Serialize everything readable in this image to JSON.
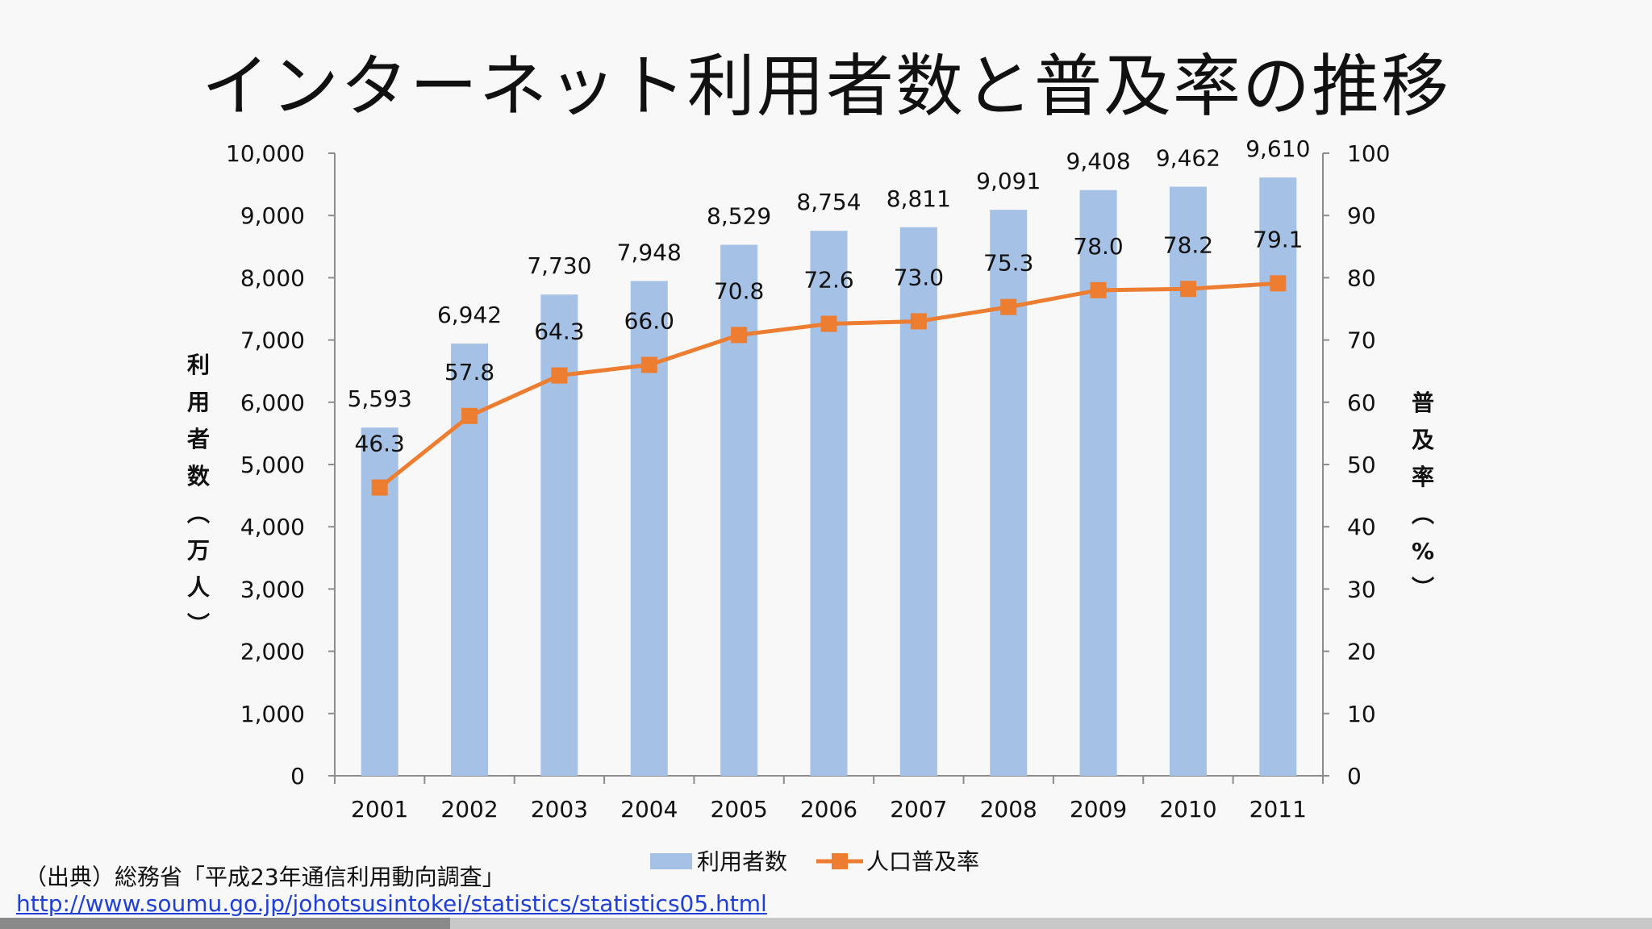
{
  "slide": {
    "title": "インターネット利用者数と普及率の推移",
    "source_text": "（出典）総務省「平成23年通信利用動向調査」",
    "source_link": "http://www.soumu.go.jp/johotsusintokei/statistics/statistics05.html"
  },
  "chart_data": {
    "type": "bar",
    "categories": [
      "2001",
      "2002",
      "2003",
      "2004",
      "2005",
      "2006",
      "2007",
      "2008",
      "2009",
      "2010",
      "2011"
    ],
    "series": [
      {
        "name": "利用者数",
        "type": "bar",
        "axis": "left",
        "color": "#a5c1e6",
        "values": [
          5593,
          6942,
          7730,
          7948,
          8529,
          8754,
          8811,
          9091,
          9408,
          9462,
          9610
        ],
        "labels": [
          "5,593",
          "6,942",
          "7,730",
          "7,948",
          "8,529",
          "8,754",
          "8,811",
          "9,091",
          "9,408",
          "9,462",
          "9,610"
        ]
      },
      {
        "name": "人口普及率",
        "type": "line",
        "axis": "right",
        "color": "#ed7d31",
        "values": [
          46.3,
          57.8,
          64.3,
          66.0,
          70.8,
          72.6,
          73.0,
          75.3,
          78.0,
          78.2,
          79.1
        ],
        "labels": [
          "46.3",
          "57.8",
          "64.3",
          "66.0",
          "70.8",
          "72.6",
          "73.0",
          "75.3",
          "78.0",
          "78.2",
          "79.1"
        ]
      }
    ],
    "y_left": {
      "label": "利用者数（万人）",
      "label_chars": [
        "利",
        "用",
        "者",
        "数",
        "︵",
        "万",
        "人",
        "︶"
      ],
      "ylim": [
        0,
        10000
      ],
      "ticks": [
        "0",
        "1,000",
        "2,000",
        "3,000",
        "4,000",
        "5,000",
        "6,000",
        "7,000",
        "8,000",
        "9,000",
        "10,000"
      ]
    },
    "y_right": {
      "label": "普及率（%）",
      "label_chars": [
        "普",
        "及",
        "率",
        "︵",
        "%",
        "︶"
      ],
      "ylim": [
        0,
        100
      ],
      "ticks": [
        "0",
        "10",
        "20",
        "30",
        "40",
        "50",
        "60",
        "70",
        "80",
        "90",
        "100"
      ]
    },
    "legend": {
      "position": "bottom"
    },
    "grid": false
  }
}
